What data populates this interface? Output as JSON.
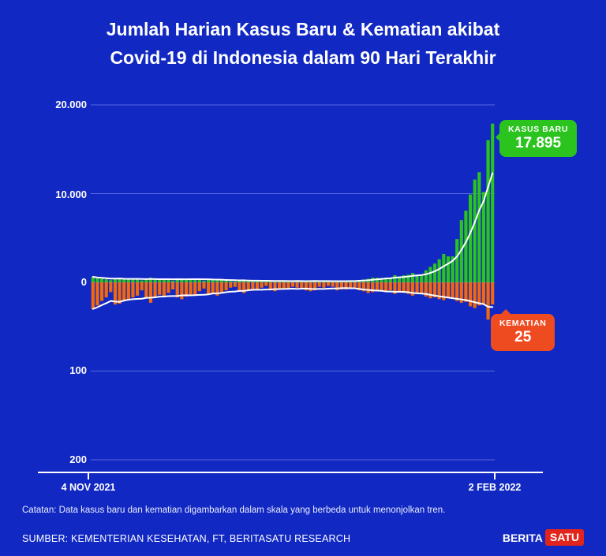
{
  "title": {
    "line1": "Jumlah Harian Kasus Baru & Kematian akibat",
    "line2": "Covid-19 di Indonesia dalam 90 Hari Terakhir"
  },
  "note": "Catatan: Data kasus baru dan kematian digambarkan dalam skala yang berbeda untuk menonjolkan tren.",
  "source": "SUMBER: KEMENTERIAN KESEHATAN, FT, BERITASATU RESEARCH",
  "logo": {
    "part1": "BERITA",
    "part2": "SATU"
  },
  "colors": {
    "background": "#1128c2",
    "cases_green": "#2bc31e",
    "deaths_orange": "#f2680e",
    "deaths_badge": "#ef4b21",
    "trendline_white": "#ffffff"
  },
  "chart_data": {
    "type": "bar",
    "title": "Jumlah Harian Kasus Baru & Kematian akibat Covid-19 di Indonesia dalam 90 Hari Terakhir",
    "x_start_label": "4 NOV 2021",
    "x_end_label": "2 FEB 2022",
    "cases_axis": {
      "ticks": [
        "20.000",
        "10.000",
        "0"
      ],
      "max": 20000,
      "direction": "up"
    },
    "deaths_axis": {
      "ticks": [
        "100",
        "200"
      ],
      "max": 200,
      "direction": "down-inverted"
    },
    "annotations": [
      {
        "series": "cases",
        "label": "KASUS BARU",
        "value": "17.895"
      },
      {
        "series": "deaths",
        "label": "KEMATIAN",
        "value": "25"
      }
    ],
    "legend_note": "Green bars = daily new cases (scale 0-20.000 upward); orange bars = daily deaths (scale 0-200 downward); white lines = 7-day trend",
    "series": [
      {
        "name": "Kasus Baru",
        "color": "#2bc31e",
        "values": [
          620,
          480,
          420,
          340,
          244,
          434,
          480,
          435,
          399,
          359,
          339,
          221,
          347,
          522,
          407,
          314,
          355,
          314,
          186,
          394,
          451,
          382,
          372,
          404,
          264,
          176,
          345,
          278,
          375,
          261,
          196,
          130,
          96,
          247,
          290,
          211,
          159,
          163,
          104,
          81,
          195,
          206,
          175,
          145,
          134,
          91,
          115,
          131,
          178,
          216,
          206,
          92,
          109,
          68,
          93,
          188,
          169,
          180,
          172,
          174,
          265,
          299,
          404,
          533,
          518,
          479,
          529,
          454,
          802,
          646,
          793,
          850,
          1054,
          855,
          772,
          1362,
          1745,
          2116,
          2604,
          3205,
          2925,
          2927,
          4878,
          7010,
          8077,
          9905,
          11588,
          12422,
          10185,
          16021,
          17895
        ]
      },
      {
        "name": "Kematian",
        "color": "#f2680e",
        "values": [
          30,
          26,
          21,
          17,
          11,
          25,
          24,
          20,
          19,
          17,
          15,
          9,
          18,
          23,
          17,
          14,
          16,
          12,
          8,
          17,
          19,
          16,
          15,
          14,
          10,
          7,
          14,
          12,
          15,
          11,
          9,
          6,
          5,
          10,
          12,
          9,
          8,
          8,
          6,
          4,
          9,
          10,
          8,
          7,
          7,
          5,
          6,
          7,
          9,
          10,
          9,
          5,
          6,
          4,
          5,
          9,
          8,
          8,
          7,
          6,
          9,
          10,
          12,
          11,
          10,
          9,
          11,
          9,
          13,
          11,
          12,
          13,
          15,
          13,
          12,
          16,
          18,
          17,
          19,
          20,
          18,
          17,
          21,
          23,
          22,
          27,
          29,
          26,
          24,
          42,
          25
        ]
      }
    ]
  }
}
